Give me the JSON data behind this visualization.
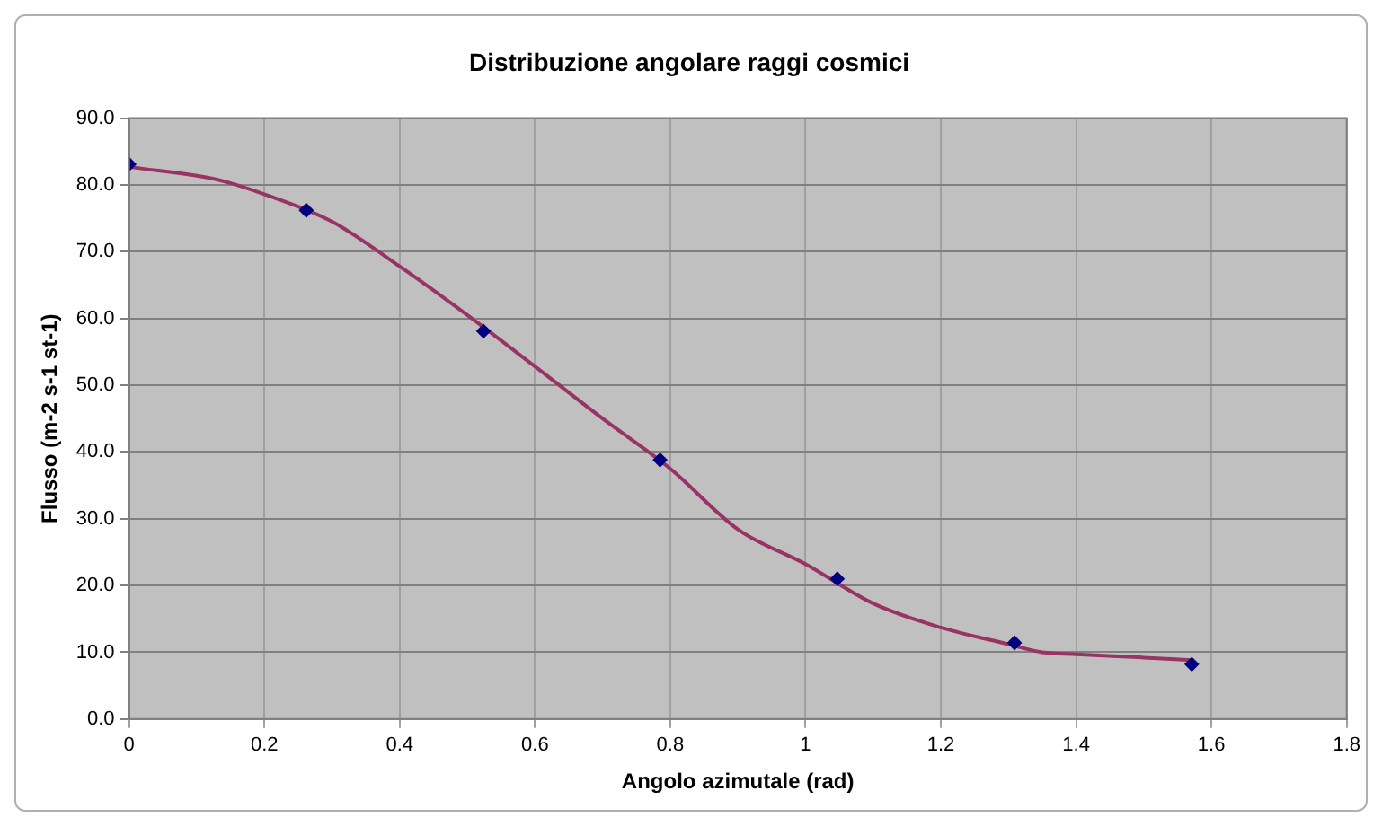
{
  "chart_data": {
    "type": "scatter",
    "title": "Distribuzione angolare raggi cosmici",
    "xlabel": "Angolo azimutale (rad)",
    "ylabel": "Flusso (m-2 s-1 st-1)",
    "series": [
      {
        "color": "#000080",
        "x": [
          0,
          0.262,
          0.524,
          0.785,
          1.047,
          1.309,
          1.571
        ],
        "values": [
          83.1,
          76.2,
          58.1,
          38.8,
          21.0,
          11.4,
          8.2
        ]
      },
      {
        "type": "line",
        "color": "#993366",
        "marker": "none",
        "x": [
          0,
          0.13,
          0.2,
          0.3,
          0.4,
          0.5,
          0.6,
          0.7,
          0.8,
          0.9,
          1.0,
          1.1,
          1.2,
          1.3,
          1.35,
          1.4,
          1.5,
          1.57
        ],
        "values": [
          82.7,
          80.8,
          78.6,
          74.5,
          67.8,
          60.5,
          52.8,
          45.0,
          37.5,
          28.4,
          23.2,
          17.3,
          13.7,
          11.2,
          10.0,
          9.7,
          9.2,
          8.8
        ]
      }
    ],
    "xlim": [
      0,
      1.8
    ],
    "xticks": [
      0,
      0.2,
      0.4,
      0.6,
      0.8,
      1,
      1.2,
      1.4,
      1.6,
      1.8
    ],
    "ylim": [
      0,
      90
    ],
    "yticks": [
      {
        "value": 0,
        "label": "0.0"
      },
      {
        "value": 10,
        "label": "10.0"
      },
      {
        "value": 20,
        "label": "20.0"
      },
      {
        "value": 30,
        "label": "30.0"
      },
      {
        "value": 40,
        "label": "40.0"
      },
      {
        "value": 50,
        "label": "50.0"
      },
      {
        "value": 60,
        "label": "60.0"
      },
      {
        "value": 70,
        "label": "70.0"
      },
      {
        "value": 80,
        "label": "80.0"
      },
      {
        "value": 90,
        "label": "90.0"
      }
    ],
    "grid": true,
    "legend": false,
    "marker": "diamond"
  }
}
